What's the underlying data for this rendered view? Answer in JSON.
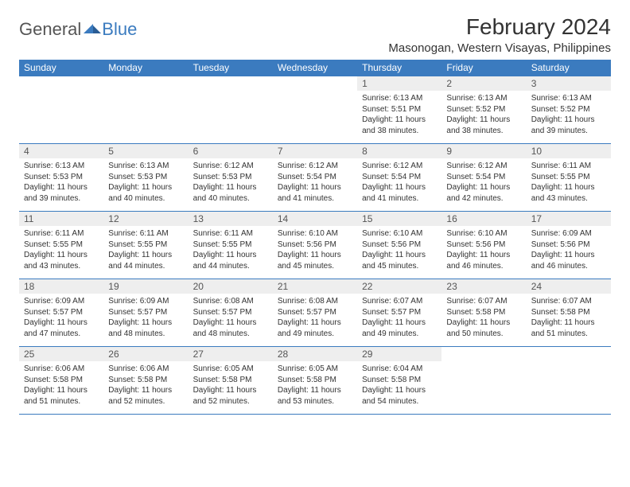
{
  "logo": {
    "general": "General",
    "blue": "Blue"
  },
  "title": "February 2024",
  "location": "Masonogan, Western Visayas, Philippines",
  "colors": {
    "header_bg": "#3b7bbf",
    "header_fg": "#ffffff",
    "daynum_bg": "#eeeeee",
    "border": "#3b7bbf",
    "text": "#333333",
    "logo_gray": "#555555",
    "logo_blue": "#3b7bbf",
    "page_bg": "#ffffff"
  },
  "typography": {
    "title_fontsize": 28,
    "location_fontsize": 15,
    "dayheader_fontsize": 12,
    "daynum_fontsize": 12,
    "body_fontsize": 10,
    "logo_fontsize": 22
  },
  "weekdays": [
    "Sunday",
    "Monday",
    "Tuesday",
    "Wednesday",
    "Thursday",
    "Friday",
    "Saturday"
  ],
  "weeks": [
    [
      {
        "empty": true
      },
      {
        "empty": true
      },
      {
        "empty": true
      },
      {
        "empty": true
      },
      {
        "num": "1",
        "sunrise": "Sunrise: 6:13 AM",
        "sunset": "Sunset: 5:51 PM",
        "daylight": "Daylight: 11 hours and 38 minutes."
      },
      {
        "num": "2",
        "sunrise": "Sunrise: 6:13 AM",
        "sunset": "Sunset: 5:52 PM",
        "daylight": "Daylight: 11 hours and 38 minutes."
      },
      {
        "num": "3",
        "sunrise": "Sunrise: 6:13 AM",
        "sunset": "Sunset: 5:52 PM",
        "daylight": "Daylight: 11 hours and 39 minutes."
      }
    ],
    [
      {
        "num": "4",
        "sunrise": "Sunrise: 6:13 AM",
        "sunset": "Sunset: 5:53 PM",
        "daylight": "Daylight: 11 hours and 39 minutes."
      },
      {
        "num": "5",
        "sunrise": "Sunrise: 6:13 AM",
        "sunset": "Sunset: 5:53 PM",
        "daylight": "Daylight: 11 hours and 40 minutes."
      },
      {
        "num": "6",
        "sunrise": "Sunrise: 6:12 AM",
        "sunset": "Sunset: 5:53 PM",
        "daylight": "Daylight: 11 hours and 40 minutes."
      },
      {
        "num": "7",
        "sunrise": "Sunrise: 6:12 AM",
        "sunset": "Sunset: 5:54 PM",
        "daylight": "Daylight: 11 hours and 41 minutes."
      },
      {
        "num": "8",
        "sunrise": "Sunrise: 6:12 AM",
        "sunset": "Sunset: 5:54 PM",
        "daylight": "Daylight: 11 hours and 41 minutes."
      },
      {
        "num": "9",
        "sunrise": "Sunrise: 6:12 AM",
        "sunset": "Sunset: 5:54 PM",
        "daylight": "Daylight: 11 hours and 42 minutes."
      },
      {
        "num": "10",
        "sunrise": "Sunrise: 6:11 AM",
        "sunset": "Sunset: 5:55 PM",
        "daylight": "Daylight: 11 hours and 43 minutes."
      }
    ],
    [
      {
        "num": "11",
        "sunrise": "Sunrise: 6:11 AM",
        "sunset": "Sunset: 5:55 PM",
        "daylight": "Daylight: 11 hours and 43 minutes."
      },
      {
        "num": "12",
        "sunrise": "Sunrise: 6:11 AM",
        "sunset": "Sunset: 5:55 PM",
        "daylight": "Daylight: 11 hours and 44 minutes."
      },
      {
        "num": "13",
        "sunrise": "Sunrise: 6:11 AM",
        "sunset": "Sunset: 5:55 PM",
        "daylight": "Daylight: 11 hours and 44 minutes."
      },
      {
        "num": "14",
        "sunrise": "Sunrise: 6:10 AM",
        "sunset": "Sunset: 5:56 PM",
        "daylight": "Daylight: 11 hours and 45 minutes."
      },
      {
        "num": "15",
        "sunrise": "Sunrise: 6:10 AM",
        "sunset": "Sunset: 5:56 PM",
        "daylight": "Daylight: 11 hours and 45 minutes."
      },
      {
        "num": "16",
        "sunrise": "Sunrise: 6:10 AM",
        "sunset": "Sunset: 5:56 PM",
        "daylight": "Daylight: 11 hours and 46 minutes."
      },
      {
        "num": "17",
        "sunrise": "Sunrise: 6:09 AM",
        "sunset": "Sunset: 5:56 PM",
        "daylight": "Daylight: 11 hours and 46 minutes."
      }
    ],
    [
      {
        "num": "18",
        "sunrise": "Sunrise: 6:09 AM",
        "sunset": "Sunset: 5:57 PM",
        "daylight": "Daylight: 11 hours and 47 minutes."
      },
      {
        "num": "19",
        "sunrise": "Sunrise: 6:09 AM",
        "sunset": "Sunset: 5:57 PM",
        "daylight": "Daylight: 11 hours and 48 minutes."
      },
      {
        "num": "20",
        "sunrise": "Sunrise: 6:08 AM",
        "sunset": "Sunset: 5:57 PM",
        "daylight": "Daylight: 11 hours and 48 minutes."
      },
      {
        "num": "21",
        "sunrise": "Sunrise: 6:08 AM",
        "sunset": "Sunset: 5:57 PM",
        "daylight": "Daylight: 11 hours and 49 minutes."
      },
      {
        "num": "22",
        "sunrise": "Sunrise: 6:07 AM",
        "sunset": "Sunset: 5:57 PM",
        "daylight": "Daylight: 11 hours and 49 minutes."
      },
      {
        "num": "23",
        "sunrise": "Sunrise: 6:07 AM",
        "sunset": "Sunset: 5:58 PM",
        "daylight": "Daylight: 11 hours and 50 minutes."
      },
      {
        "num": "24",
        "sunrise": "Sunrise: 6:07 AM",
        "sunset": "Sunset: 5:58 PM",
        "daylight": "Daylight: 11 hours and 51 minutes."
      }
    ],
    [
      {
        "num": "25",
        "sunrise": "Sunrise: 6:06 AM",
        "sunset": "Sunset: 5:58 PM",
        "daylight": "Daylight: 11 hours and 51 minutes."
      },
      {
        "num": "26",
        "sunrise": "Sunrise: 6:06 AM",
        "sunset": "Sunset: 5:58 PM",
        "daylight": "Daylight: 11 hours and 52 minutes."
      },
      {
        "num": "27",
        "sunrise": "Sunrise: 6:05 AM",
        "sunset": "Sunset: 5:58 PM",
        "daylight": "Daylight: 11 hours and 52 minutes."
      },
      {
        "num": "28",
        "sunrise": "Sunrise: 6:05 AM",
        "sunset": "Sunset: 5:58 PM",
        "daylight": "Daylight: 11 hours and 53 minutes."
      },
      {
        "num": "29",
        "sunrise": "Sunrise: 6:04 AM",
        "sunset": "Sunset: 5:58 PM",
        "daylight": "Daylight: 11 hours and 54 minutes."
      },
      {
        "empty": true
      },
      {
        "empty": true
      }
    ]
  ]
}
